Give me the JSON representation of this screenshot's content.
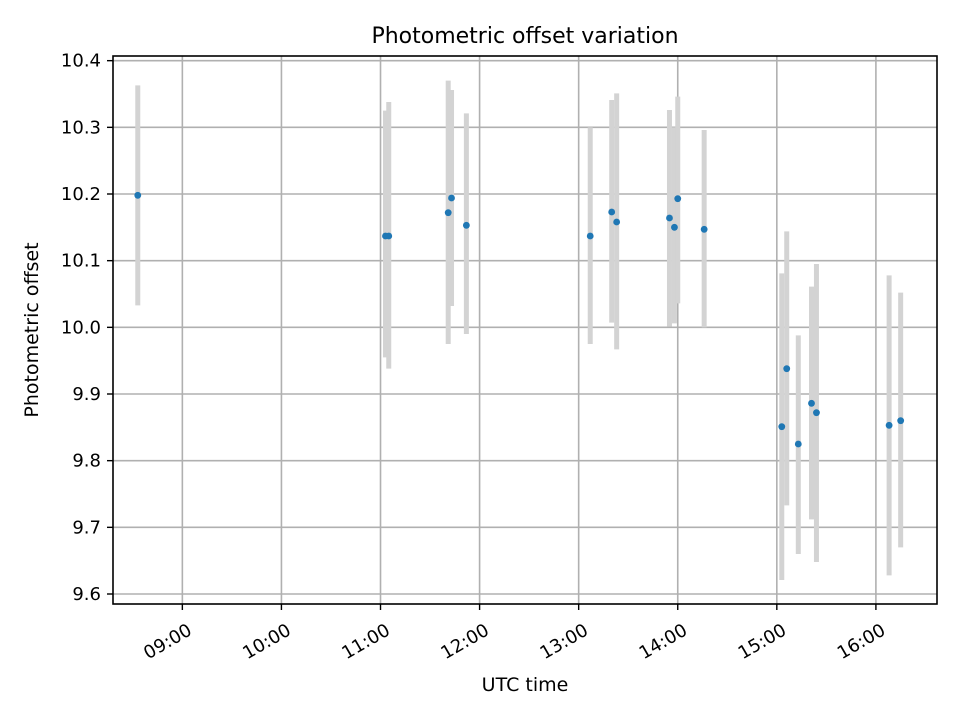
{
  "chart_data": {
    "type": "scatter",
    "title": "Photometric offset variation",
    "xlabel": "UTC time",
    "ylabel": "Photometric offset",
    "grid": true,
    "x_ticks": [
      "09:00",
      "10:00",
      "11:00",
      "12:00",
      "13:00",
      "14:00",
      "15:00",
      "16:00"
    ],
    "y_ticks": [
      "9.6",
      "9.7",
      "9.8",
      "9.9",
      "10.0",
      "10.1",
      "10.2",
      "10.3",
      "10.4"
    ],
    "xlim": [
      "08:18",
      "16:37"
    ],
    "ylim": [
      9.585,
      10.407
    ],
    "colors": {
      "point": "#1f77b4",
      "errorbar": "#d3d3d3",
      "grid": "#b0b0b0"
    },
    "points": [
      {
        "x": "08:33",
        "y": 10.198,
        "ylo": 10.033,
        "yhi": 10.363
      },
      {
        "x": "11:03",
        "y": 10.137,
        "ylo": 9.955,
        "yhi": 10.325
      },
      {
        "x": "11:05",
        "y": 10.137,
        "ylo": 9.938,
        "yhi": 10.338
      },
      {
        "x": "11:41",
        "y": 10.172,
        "ylo": 9.975,
        "yhi": 10.37
      },
      {
        "x": "11:43",
        "y": 10.194,
        "ylo": 10.032,
        "yhi": 10.356
      },
      {
        "x": "11:52",
        "y": 10.153,
        "ylo": 9.99,
        "yhi": 10.321
      },
      {
        "x": "13:07",
        "y": 10.137,
        "ylo": 9.975,
        "yhi": 10.3
      },
      {
        "x": "13:20",
        "y": 10.173,
        "ylo": 10.007,
        "yhi": 10.341
      },
      {
        "x": "13:23",
        "y": 10.158,
        "ylo": 9.967,
        "yhi": 10.351
      },
      {
        "x": "13:55",
        "y": 10.164,
        "ylo": 10.001,
        "yhi": 10.326
      },
      {
        "x": "13:58",
        "y": 10.15,
        "ylo": 10.006,
        "yhi": 10.3
      },
      {
        "x": "14:00",
        "y": 10.193,
        "ylo": 10.036,
        "yhi": 10.346
      },
      {
        "x": "14:16",
        "y": 10.147,
        "ylo": 10.0,
        "yhi": 10.296
      },
      {
        "x": "15:03",
        "y": 9.851,
        "ylo": 9.621,
        "yhi": 10.081
      },
      {
        "x": "15:06",
        "y": 9.938,
        "ylo": 9.733,
        "yhi": 10.144
      },
      {
        "x": "15:13",
        "y": 9.825,
        "ylo": 9.66,
        "yhi": 9.988
      },
      {
        "x": "15:21",
        "y": 9.886,
        "ylo": 9.712,
        "yhi": 10.061
      },
      {
        "x": "15:24",
        "y": 9.872,
        "ylo": 9.648,
        "yhi": 10.095
      },
      {
        "x": "16:08",
        "y": 9.853,
        "ylo": 9.628,
        "yhi": 10.078
      },
      {
        "x": "16:15",
        "y": 9.86,
        "ylo": 9.67,
        "yhi": 10.052
      }
    ]
  }
}
